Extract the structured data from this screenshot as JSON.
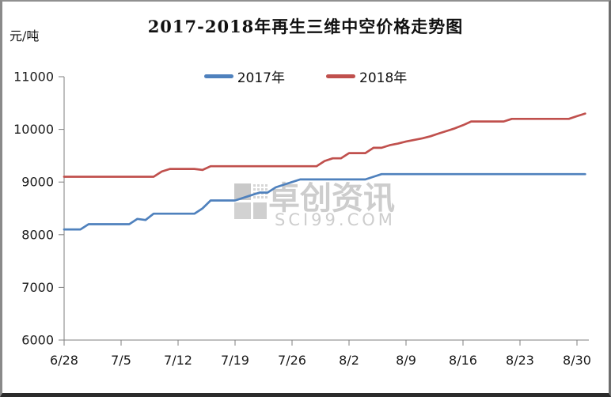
{
  "title": "2017-2018年再生三维中空价格走势图",
  "y_axis_unit": "元/吨",
  "legend": [
    {
      "label": "2017年",
      "color": "#4F81BD"
    },
    {
      "label": "2018年",
      "color": "#C0504D"
    }
  ],
  "watermark": {
    "line1": "卓创资讯",
    "line2": "SCI99.COM"
  },
  "chart_data": {
    "type": "line",
    "title": "2017-2018年再生三维中空价格走势图",
    "ylabel": "元/吨",
    "ylim": [
      6000,
      11000
    ],
    "y_ticks": [
      6000,
      7000,
      8000,
      9000,
      10000,
      11000
    ],
    "grid": false,
    "legend_position": "top-center",
    "x_tick_labels": [
      "6/28",
      "7/5",
      "7/12",
      "7/19",
      "7/26",
      "8/2",
      "8/9",
      "8/16",
      "8/23",
      "8/30"
    ],
    "x": [
      "6/28",
      "6/29",
      "6/30",
      "7/1",
      "7/2",
      "7/3",
      "7/4",
      "7/5",
      "7/6",
      "7/7",
      "7/8",
      "7/9",
      "7/10",
      "7/11",
      "7/12",
      "7/13",
      "7/14",
      "7/15",
      "7/16",
      "7/17",
      "7/18",
      "7/19",
      "7/20",
      "7/21",
      "7/22",
      "7/23",
      "7/24",
      "7/25",
      "7/26",
      "7/27",
      "7/28",
      "7/29",
      "7/30",
      "7/31",
      "8/1",
      "8/2",
      "8/3",
      "8/4",
      "8/5",
      "8/6",
      "8/7",
      "8/8",
      "8/9",
      "8/10",
      "8/11",
      "8/12",
      "8/13",
      "8/14",
      "8/15",
      "8/16",
      "8/17",
      "8/18",
      "8/19",
      "8/20",
      "8/21",
      "8/22",
      "8/23",
      "8/24",
      "8/25",
      "8/26",
      "8/27",
      "8/28",
      "8/29",
      "8/30",
      "8/31"
    ],
    "series": [
      {
        "name": "2017年",
        "color": "#4F81BD",
        "values": [
          8100,
          8100,
          8100,
          8200,
          8200,
          8200,
          8200,
          8200,
          8200,
          8300,
          8280,
          8400,
          8400,
          8400,
          8400,
          8400,
          8400,
          8500,
          8650,
          8650,
          8650,
          8650,
          8700,
          8750,
          8800,
          8800,
          8900,
          8950,
          9000,
          9050,
          9050,
          9050,
          9050,
          9050,
          9050,
          9050,
          9050,
          9050,
          9100,
          9150,
          9150,
          9150,
          9150,
          9150,
          9150,
          9150,
          9150,
          9150,
          9150,
          9150,
          9150,
          9150,
          9150,
          9150,
          9150,
          9150,
          9150,
          9150,
          9150,
          9150,
          9150,
          9150,
          9150,
          9150,
          9150
        ]
      },
      {
        "name": "2018年",
        "color": "#C0504D",
        "values": [
          9100,
          9100,
          9100,
          9100,
          9100,
          9100,
          9100,
          9100,
          9100,
          9100,
          9100,
          9100,
          9200,
          9250,
          9250,
          9250,
          9250,
          9230,
          9300,
          9300,
          9300,
          9300,
          9300,
          9300,
          9300,
          9300,
          9300,
          9300,
          9300,
          9300,
          9300,
          9300,
          9400,
          9450,
          9450,
          9550,
          9550,
          9550,
          9650,
          9650,
          9700,
          9730,
          9770,
          9800,
          9830,
          9870,
          9920,
          9970,
          10020,
          10080,
          10150,
          10150,
          10150,
          10150,
          10150,
          10200,
          10200,
          10200,
          10200,
          10200,
          10200,
          10200,
          10200,
          10250,
          10300
        ]
      }
    ]
  }
}
